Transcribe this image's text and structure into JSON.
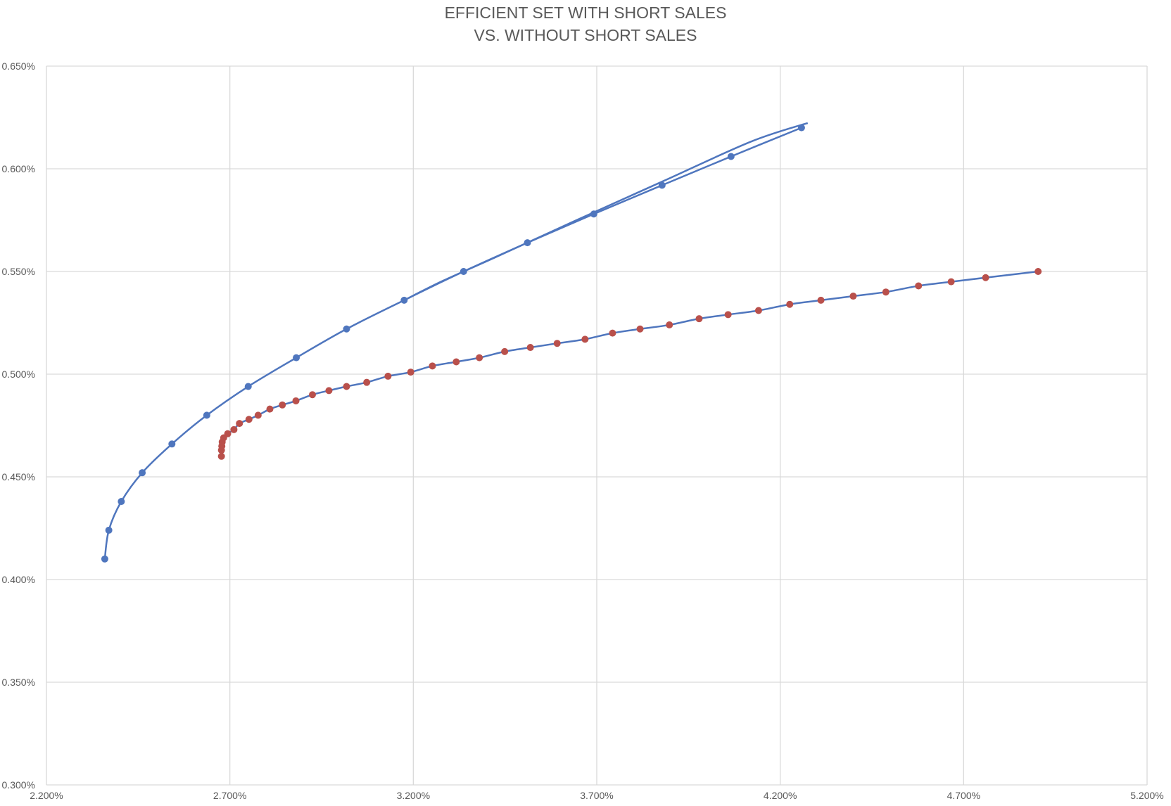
{
  "chart_data": {
    "type": "scatter",
    "title": [
      "EFFICIENT SET WITH SHORT SALES",
      "VS. WITHOUT SHORT SALES"
    ],
    "xlabel": "",
    "ylabel": "",
    "xlim": [
      0.022,
      0.052
    ],
    "ylim": [
      0.003,
      0.0065
    ],
    "x_ticks": [
      0.022,
      0.027,
      0.032,
      0.037,
      0.042,
      0.047,
      0.052
    ],
    "x_tick_labels": [
      "2.200%",
      "2.700%",
      "3.200%",
      "3.700%",
      "4.200%",
      "4.700%",
      "5.200%"
    ],
    "y_ticks": [
      0.003,
      0.0035,
      0.004,
      0.0045,
      0.005,
      0.0055,
      0.006,
      0.0065
    ],
    "y_tick_labels": [
      "0.300%",
      "0.350%",
      "0.400%",
      "0.450%",
      "0.500%",
      "0.550%",
      "0.600%",
      "0.650%"
    ],
    "grid": true,
    "legend": "none",
    "line_color": "#4f76be",
    "series": [
      {
        "color": "#4f76be",
        "marker": "circle",
        "points": [
          [
            0.02359,
            0.0041
          ],
          [
            0.0237,
            0.00424
          ],
          [
            0.02404,
            0.00438
          ],
          [
            0.02461,
            0.00452
          ],
          [
            0.02542,
            0.00466
          ],
          [
            0.02637,
            0.0048
          ],
          [
            0.0275,
            0.00494
          ],
          [
            0.02881,
            0.00508
          ],
          [
            0.03018,
            0.00522
          ],
          [
            0.03175,
            0.00536
          ],
          [
            0.03337,
            0.0055
          ],
          [
            0.03511,
            0.00564
          ],
          [
            0.03692,
            0.00578
          ],
          [
            0.03878,
            0.00592
          ],
          [
            0.04066,
            0.00606
          ],
          [
            0.04258,
            0.0062
          ]
        ]
      },
      {
        "color": "#b9504b",
        "marker": "circle",
        "points": [
          [
            0.02677,
            0.0046
          ],
          [
            0.02677,
            0.00463
          ],
          [
            0.02678,
            0.00465
          ],
          [
            0.02679,
            0.00467
          ],
          [
            0.02683,
            0.00469
          ],
          [
            0.02694,
            0.00471
          ],
          [
            0.02711,
            0.00473
          ],
          [
            0.02726,
            0.00476
          ],
          [
            0.02752,
            0.00478
          ],
          [
            0.02777,
            0.0048
          ],
          [
            0.02809,
            0.00483
          ],
          [
            0.02843,
            0.00485
          ],
          [
            0.0288,
            0.00487
          ],
          [
            0.02925,
            0.0049
          ],
          [
            0.0297,
            0.00492
          ],
          [
            0.03018,
            0.00494
          ],
          [
            0.03073,
            0.00496
          ],
          [
            0.03131,
            0.00499
          ],
          [
            0.03193,
            0.00501
          ],
          [
            0.03252,
            0.00504
          ],
          [
            0.03317,
            0.00506
          ],
          [
            0.0338,
            0.00508
          ],
          [
            0.03449,
            0.00511
          ],
          [
            0.03519,
            0.00513
          ],
          [
            0.03592,
            0.00515
          ],
          [
            0.03668,
            0.00517
          ],
          [
            0.03743,
            0.0052
          ],
          [
            0.03818,
            0.00522
          ],
          [
            0.03898,
            0.00524
          ],
          [
            0.03979,
            0.00527
          ],
          [
            0.04058,
            0.00529
          ],
          [
            0.04141,
            0.00531
          ],
          [
            0.04226,
            0.00534
          ],
          [
            0.04311,
            0.00536
          ],
          [
            0.04399,
            0.00538
          ],
          [
            0.04488,
            0.0054
          ],
          [
            0.04577,
            0.00543
          ],
          [
            0.04666,
            0.00545
          ],
          [
            0.0476,
            0.00547
          ],
          [
            0.04903,
            0.0055
          ]
        ]
      }
    ],
    "connector_lines": [
      {
        "color": "#4f76be",
        "points": [
          [
            0.03175,
            0.00536
          ],
          [
            0.0328,
            0.005454
          ],
          [
            0.0342,
            0.005566
          ],
          [
            0.0364,
            0.005746
          ],
          [
            0.0388,
            0.005939
          ],
          [
            0.0412,
            0.006132
          ],
          [
            0.04275,
            0.006223
          ]
        ]
      },
      {
        "color": "#4f76be",
        "points": [
          [
            0.02677,
            0.0046
          ],
          [
            0.02677,
            0.00463
          ],
          [
            0.02678,
            0.00465
          ],
          [
            0.02679,
            0.00467
          ],
          [
            0.02683,
            0.00469
          ],
          [
            0.02694,
            0.00471
          ],
          [
            0.02711,
            0.00473
          ],
          [
            0.02726,
            0.00476
          ],
          [
            0.02752,
            0.00478
          ],
          [
            0.02777,
            0.0048
          ],
          [
            0.02809,
            0.00483
          ],
          [
            0.02843,
            0.00485
          ],
          [
            0.0288,
            0.00487
          ],
          [
            0.02925,
            0.0049
          ],
          [
            0.0297,
            0.00492
          ],
          [
            0.03018,
            0.00494
          ],
          [
            0.03073,
            0.00496
          ],
          [
            0.03131,
            0.00499
          ],
          [
            0.03193,
            0.00501
          ],
          [
            0.03252,
            0.00504
          ],
          [
            0.03317,
            0.00506
          ],
          [
            0.0338,
            0.00508
          ],
          [
            0.03449,
            0.00511
          ],
          [
            0.03519,
            0.00513
          ],
          [
            0.03592,
            0.00515
          ],
          [
            0.03668,
            0.00517
          ],
          [
            0.03743,
            0.0052
          ],
          [
            0.03818,
            0.00522
          ],
          [
            0.03898,
            0.00524
          ],
          [
            0.03979,
            0.00527
          ],
          [
            0.04058,
            0.00529
          ],
          [
            0.04141,
            0.00531
          ],
          [
            0.04226,
            0.00534
          ],
          [
            0.04311,
            0.00536
          ],
          [
            0.04399,
            0.00538
          ],
          [
            0.04488,
            0.0054
          ],
          [
            0.04577,
            0.00543
          ],
          [
            0.04666,
            0.00545
          ],
          [
            0.0476,
            0.00547
          ],
          [
            0.04903,
            0.0055
          ]
        ]
      }
    ]
  }
}
